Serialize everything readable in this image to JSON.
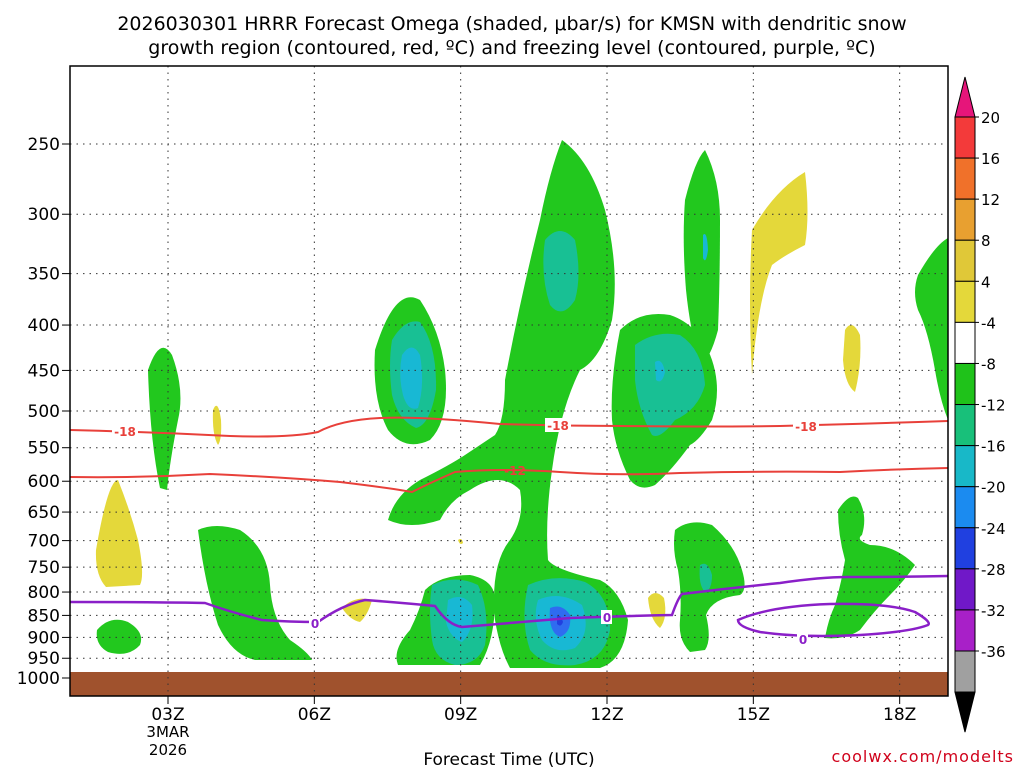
{
  "chart_data": {
    "type": "contour-timeheight",
    "title_line1": "2026030301 HRRR Forecast Omega (shaded, μbar/s) for KMSN with dendritic snow",
    "title_line2": "growth region (contoured, red, ºC) and freezing level (contoured, purple, ºC)",
    "xlabel": "Forecast Time (UTC)",
    "x_ticks": [
      "03Z",
      "06Z",
      "09Z",
      "12Z",
      "15Z",
      "18Z"
    ],
    "x_date_line1": "3MAR",
    "x_date_line2": "2026",
    "y_ticks": [
      250,
      300,
      350,
      400,
      450,
      500,
      550,
      600,
      650,
      700,
      750,
      800,
      850,
      900,
      950,
      1000
    ],
    "colorbar_labels": [
      "20",
      "16",
      "12",
      "8",
      "4",
      "-4",
      "-8",
      "-12",
      "-16",
      "-20",
      "-24",
      "-28",
      "-32",
      "-36"
    ],
    "colorbar_colors": [
      "#f33a3a",
      "#f0712a",
      "#e8a030",
      "#e0c838",
      "#e4d83a",
      "#ffffff",
      "#1fc21a",
      "#18c07a",
      "#18b8c8",
      "#1b8bf0",
      "#2040e0",
      "#7018c8",
      "#a820c8",
      "#a0a0a0"
    ],
    "contour_labels": {
      "dgz_upper": "-18",
      "dgz_lower": "-12",
      "freezing": "0"
    },
    "credit": "coolwx.com/modelts",
    "colors": {
      "dgz": "#e8403a",
      "freezing": "#8a1fc8",
      "ground": "#a0522d",
      "green": "#22c81e",
      "teal": "#18c094",
      "cyan": "#18b8d4",
      "blue": "#2f6cf0",
      "yellow": "#e4d83a"
    }
  }
}
